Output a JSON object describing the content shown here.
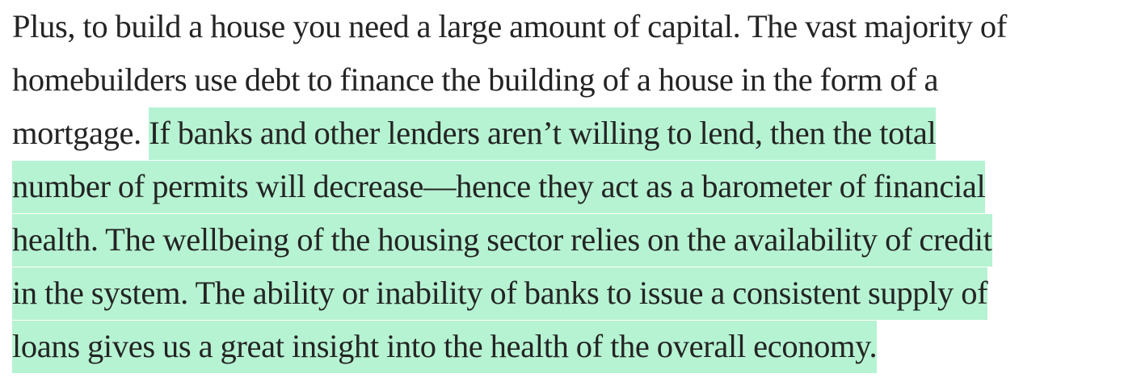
{
  "article": {
    "lines": [
      {
        "plain": "Plus, to build a house you need a large amount of capital. The vast majority of",
        "highlight": ""
      },
      {
        "plain": "homebuilders use debt to finance the building of a house in the form of a",
        "highlight": ""
      },
      {
        "plain": "mortgage. ",
        "highlight": "If banks and other lenders aren’t willing to lend, then the total"
      },
      {
        "plain": "",
        "highlight": "number of permits will decrease—hence they act as a barometer of financial"
      },
      {
        "plain": "",
        "highlight": "health. The wellbeing of the housing sector relies on the availability of credit"
      },
      {
        "plain": "",
        "highlight": "in the system. The ability or inability of banks to issue a consistent supply of"
      },
      {
        "plain": "",
        "highlight": "loans gives us a great insight into the health of the overall economy."
      }
    ],
    "highlight_color": "#b6f3d2",
    "text_color": "#242424"
  }
}
